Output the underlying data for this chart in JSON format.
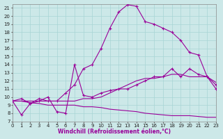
{
  "xlabel": "Windchill (Refroidissement éolien,°C)",
  "xlim": [
    0,
    23
  ],
  "ylim": [
    7,
    21.5
  ],
  "xticks": [
    0,
    1,
    2,
    3,
    4,
    5,
    6,
    7,
    8,
    9,
    10,
    11,
    12,
    13,
    14,
    15,
    16,
    17,
    18,
    19,
    20,
    21,
    22,
    23
  ],
  "yticks": [
    7,
    8,
    9,
    10,
    11,
    12,
    13,
    14,
    15,
    16,
    17,
    18,
    19,
    20,
    21
  ],
  "bg_color": "#cce8e8",
  "grid_color": "#a8d4d4",
  "line_color": "#990099",
  "curve1_x": [
    0,
    1,
    2,
    3,
    4,
    5,
    6,
    7,
    8,
    9,
    10,
    11,
    12,
    13,
    14,
    15,
    16,
    17,
    18,
    19,
    20,
    21,
    22,
    23
  ],
  "curve1_y": [
    9.5,
    7.8,
    9.2,
    9.8,
    9.5,
    9.5,
    10.5,
    11.5,
    13.5,
    14.0,
    16.0,
    18.5,
    20.5,
    21.4,
    21.2,
    19.3,
    19.0,
    18.5,
    18.0,
    17.0,
    15.5,
    15.2,
    12.5,
    11.0
  ],
  "curve2_x": [
    0,
    1,
    2,
    3,
    4,
    5,
    6,
    7,
    8,
    9,
    10,
    11,
    12,
    13,
    14,
    15,
    16,
    17,
    18,
    19,
    20,
    21,
    22,
    23
  ],
  "curve2_y": [
    9.5,
    9.8,
    9.2,
    9.5,
    10.0,
    8.2,
    8.0,
    14.0,
    10.2,
    10.0,
    10.5,
    10.8,
    11.0,
    11.0,
    11.5,
    12.0,
    12.5,
    12.5,
    13.5,
    12.5,
    13.5,
    12.8,
    12.5,
    11.5
  ],
  "curve3_x": [
    0,
    1,
    2,
    3,
    4,
    5,
    6,
    7,
    8,
    9,
    10,
    11,
    12,
    13,
    14,
    15,
    16,
    17,
    18,
    19,
    20,
    21,
    22,
    23
  ],
  "curve3_y": [
    9.5,
    9.5,
    9.5,
    9.5,
    9.5,
    9.5,
    9.5,
    9.5,
    9.8,
    9.8,
    10.0,
    10.5,
    11.0,
    11.5,
    12.0,
    12.3,
    12.3,
    12.5,
    12.8,
    12.8,
    12.5,
    12.5,
    12.5,
    11.8
  ],
  "curve4_x": [
    0,
    1,
    2,
    3,
    4,
    5,
    6,
    7,
    8,
    9,
    10,
    11,
    12,
    13,
    14,
    15,
    16,
    17,
    18,
    19,
    20,
    21,
    22,
    23
  ],
  "curve4_y": [
    9.5,
    9.5,
    9.3,
    9.2,
    9.0,
    9.0,
    9.0,
    9.0,
    8.8,
    8.8,
    8.7,
    8.5,
    8.4,
    8.3,
    8.2,
    8.0,
    7.9,
    7.8,
    7.7,
    7.7,
    7.7,
    7.6,
    7.5,
    7.5
  ]
}
